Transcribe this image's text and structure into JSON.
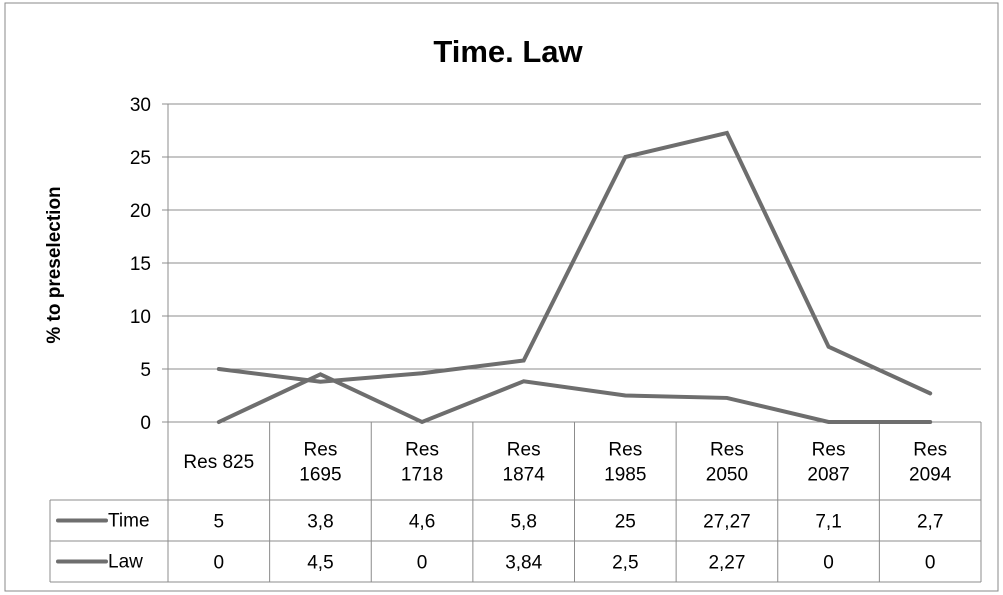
{
  "chart_data": {
    "type": "line",
    "title": "Time. Law",
    "ylabel": "% to preselection",
    "xlabel": "",
    "ylim": [
      0,
      30
    ],
    "yticks": [
      0,
      5,
      10,
      15,
      20,
      25,
      30
    ],
    "grid": true,
    "legend": "data-table-left",
    "categories": [
      [
        "Res 825"
      ],
      [
        "Res",
        "1695"
      ],
      [
        "Res",
        "1718"
      ],
      [
        "Res",
        "1874"
      ],
      [
        "Res",
        "1985"
      ],
      [
        "Res",
        "2050"
      ],
      [
        "Res",
        "2087"
      ],
      [
        "Res",
        "2094"
      ]
    ],
    "series": [
      {
        "name": "Time",
        "values": [
          5,
          3.8,
          4.6,
          5.8,
          25,
          27.27,
          7.1,
          2.7
        ],
        "labels": [
          "5",
          "3,8",
          "4,6",
          "5,8",
          "25",
          "27,27",
          "7,1",
          "2,7"
        ],
        "color": "#6e6e6e"
      },
      {
        "name": "Law",
        "values": [
          0,
          4.5,
          0,
          3.84,
          2.5,
          2.27,
          0,
          0
        ],
        "labels": [
          "0",
          "4,5",
          "0",
          "3,84",
          "2,5",
          "2,27",
          "0",
          "0"
        ],
        "color": "#6e6e6e"
      }
    ]
  }
}
